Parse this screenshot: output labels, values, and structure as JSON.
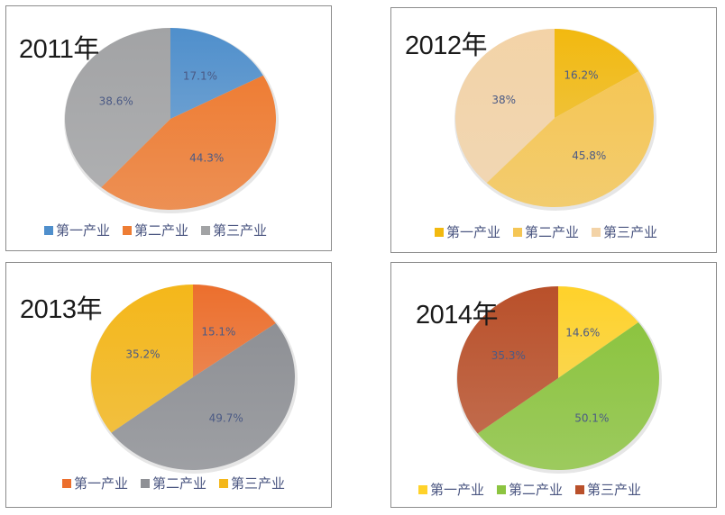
{
  "panels": [
    {
      "title": "2011年",
      "legend": [
        "第一产业",
        "第二产业",
        "第三产业"
      ],
      "colors": [
        "#4f8fcc",
        "#ee7d34",
        "#a2a3a5"
      ],
      "labels": [
        "17.1%",
        "44.3%",
        "38.6%"
      ]
    },
    {
      "title": "2012年",
      "legend": [
        "第一产业",
        "第二产业",
        "第三产业"
      ],
      "colors": [
        "#f2b90f",
        "#f5c655",
        "#f3d3a7"
      ],
      "labels": [
        "16.2%",
        "45.8%",
        "38%"
      ]
    },
    {
      "title": "2013年",
      "legend": [
        "第一产业",
        "第二产业",
        "第三产业"
      ],
      "colors": [
        "#ec6f2d",
        "#8e9095",
        "#f4b71a"
      ],
      "labels": [
        "15.1%",
        "49.7%",
        "35.2%"
      ]
    },
    {
      "title": "2014年",
      "legend": [
        "第一产业",
        "第二产业",
        "第三产业"
      ],
      "colors": [
        "#ffd22a",
        "#8cc440",
        "#b9502a"
      ],
      "labels": [
        "14.6%",
        "50.1%",
        "35.3%"
      ]
    }
  ],
  "chart_data": [
    {
      "type": "pie",
      "title": "2011年",
      "categories": [
        "第一产业",
        "第二产业",
        "第三产业"
      ],
      "values": [
        17.1,
        44.3,
        38.6
      ],
      "legend_position": "bottom"
    },
    {
      "type": "pie",
      "title": "2012年",
      "categories": [
        "第一产业",
        "第二产业",
        "第三产业"
      ],
      "values": [
        16.2,
        45.8,
        38.0
      ],
      "legend_position": "bottom"
    },
    {
      "type": "pie",
      "title": "2013年",
      "categories": [
        "第一产业",
        "第二产业",
        "第三产业"
      ],
      "values": [
        15.1,
        49.7,
        35.2
      ],
      "legend_position": "bottom"
    },
    {
      "type": "pie",
      "title": "2014年",
      "categories": [
        "第一产业",
        "第二产业",
        "第三产业"
      ],
      "values": [
        14.6,
        50.1,
        35.3
      ],
      "legend_position": "bottom"
    }
  ]
}
